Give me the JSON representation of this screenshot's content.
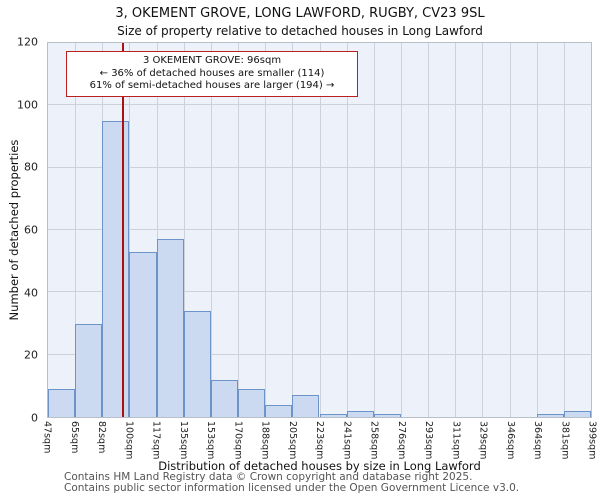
{
  "title": "3, OKEMENT GROVE, LONG LAWFORD, RUGBY, CV23 9SL",
  "subtitle": "Size of property relative to detached houses in Long Lawford",
  "annotation": {
    "line1": "3 OKEMENT GROVE: 96sqm",
    "line2": "← 36% of detached houses are smaller (114)",
    "line3": "61% of semi-detached houses are larger (194) →"
  },
  "footer": {
    "line1": "Contains HM Land Registry data © Crown copyright and database right 2025.",
    "line2": "Contains public sector information licensed under the Open Government Licence v3.0."
  },
  "chart_data": {
    "type": "bar",
    "title": "Size of property relative to detached houses in Long Lawford",
    "xlabel": "Distribution of detached houses by size in Long Lawford",
    "ylabel": "Number of detached properties",
    "categories": [
      "47sqm",
      "65sqm",
      "82sqm",
      "100sqm",
      "117sqm",
      "135sqm",
      "153sqm",
      "170sqm",
      "188sqm",
      "205sqm",
      "223sqm",
      "241sqm",
      "258sqm",
      "276sqm",
      "293sqm",
      "311sqm",
      "329sqm",
      "346sqm",
      "364sqm",
      "381sqm",
      "399sqm"
    ],
    "values": [
      9,
      30,
      95,
      53,
      57,
      34,
      12,
      9,
      4,
      7,
      1,
      2,
      1,
      0,
      0,
      0,
      0,
      0,
      1,
      2
    ],
    "ylim": [
      0,
      120
    ],
    "yticks": [
      0,
      20,
      40,
      60,
      80,
      100,
      120
    ],
    "grid": "on",
    "legend": "none",
    "marker": {
      "value": 96,
      "label": "96sqm",
      "color": "#aa1111"
    },
    "colors": {
      "bar_fill": "#cbdaf1",
      "bar_border": "#6c94c8",
      "plot_bg": "#edf2fa",
      "grid": "#cdd1dc",
      "marker_red": "#aa1111",
      "annotation_border": "#bb2020"
    }
  }
}
